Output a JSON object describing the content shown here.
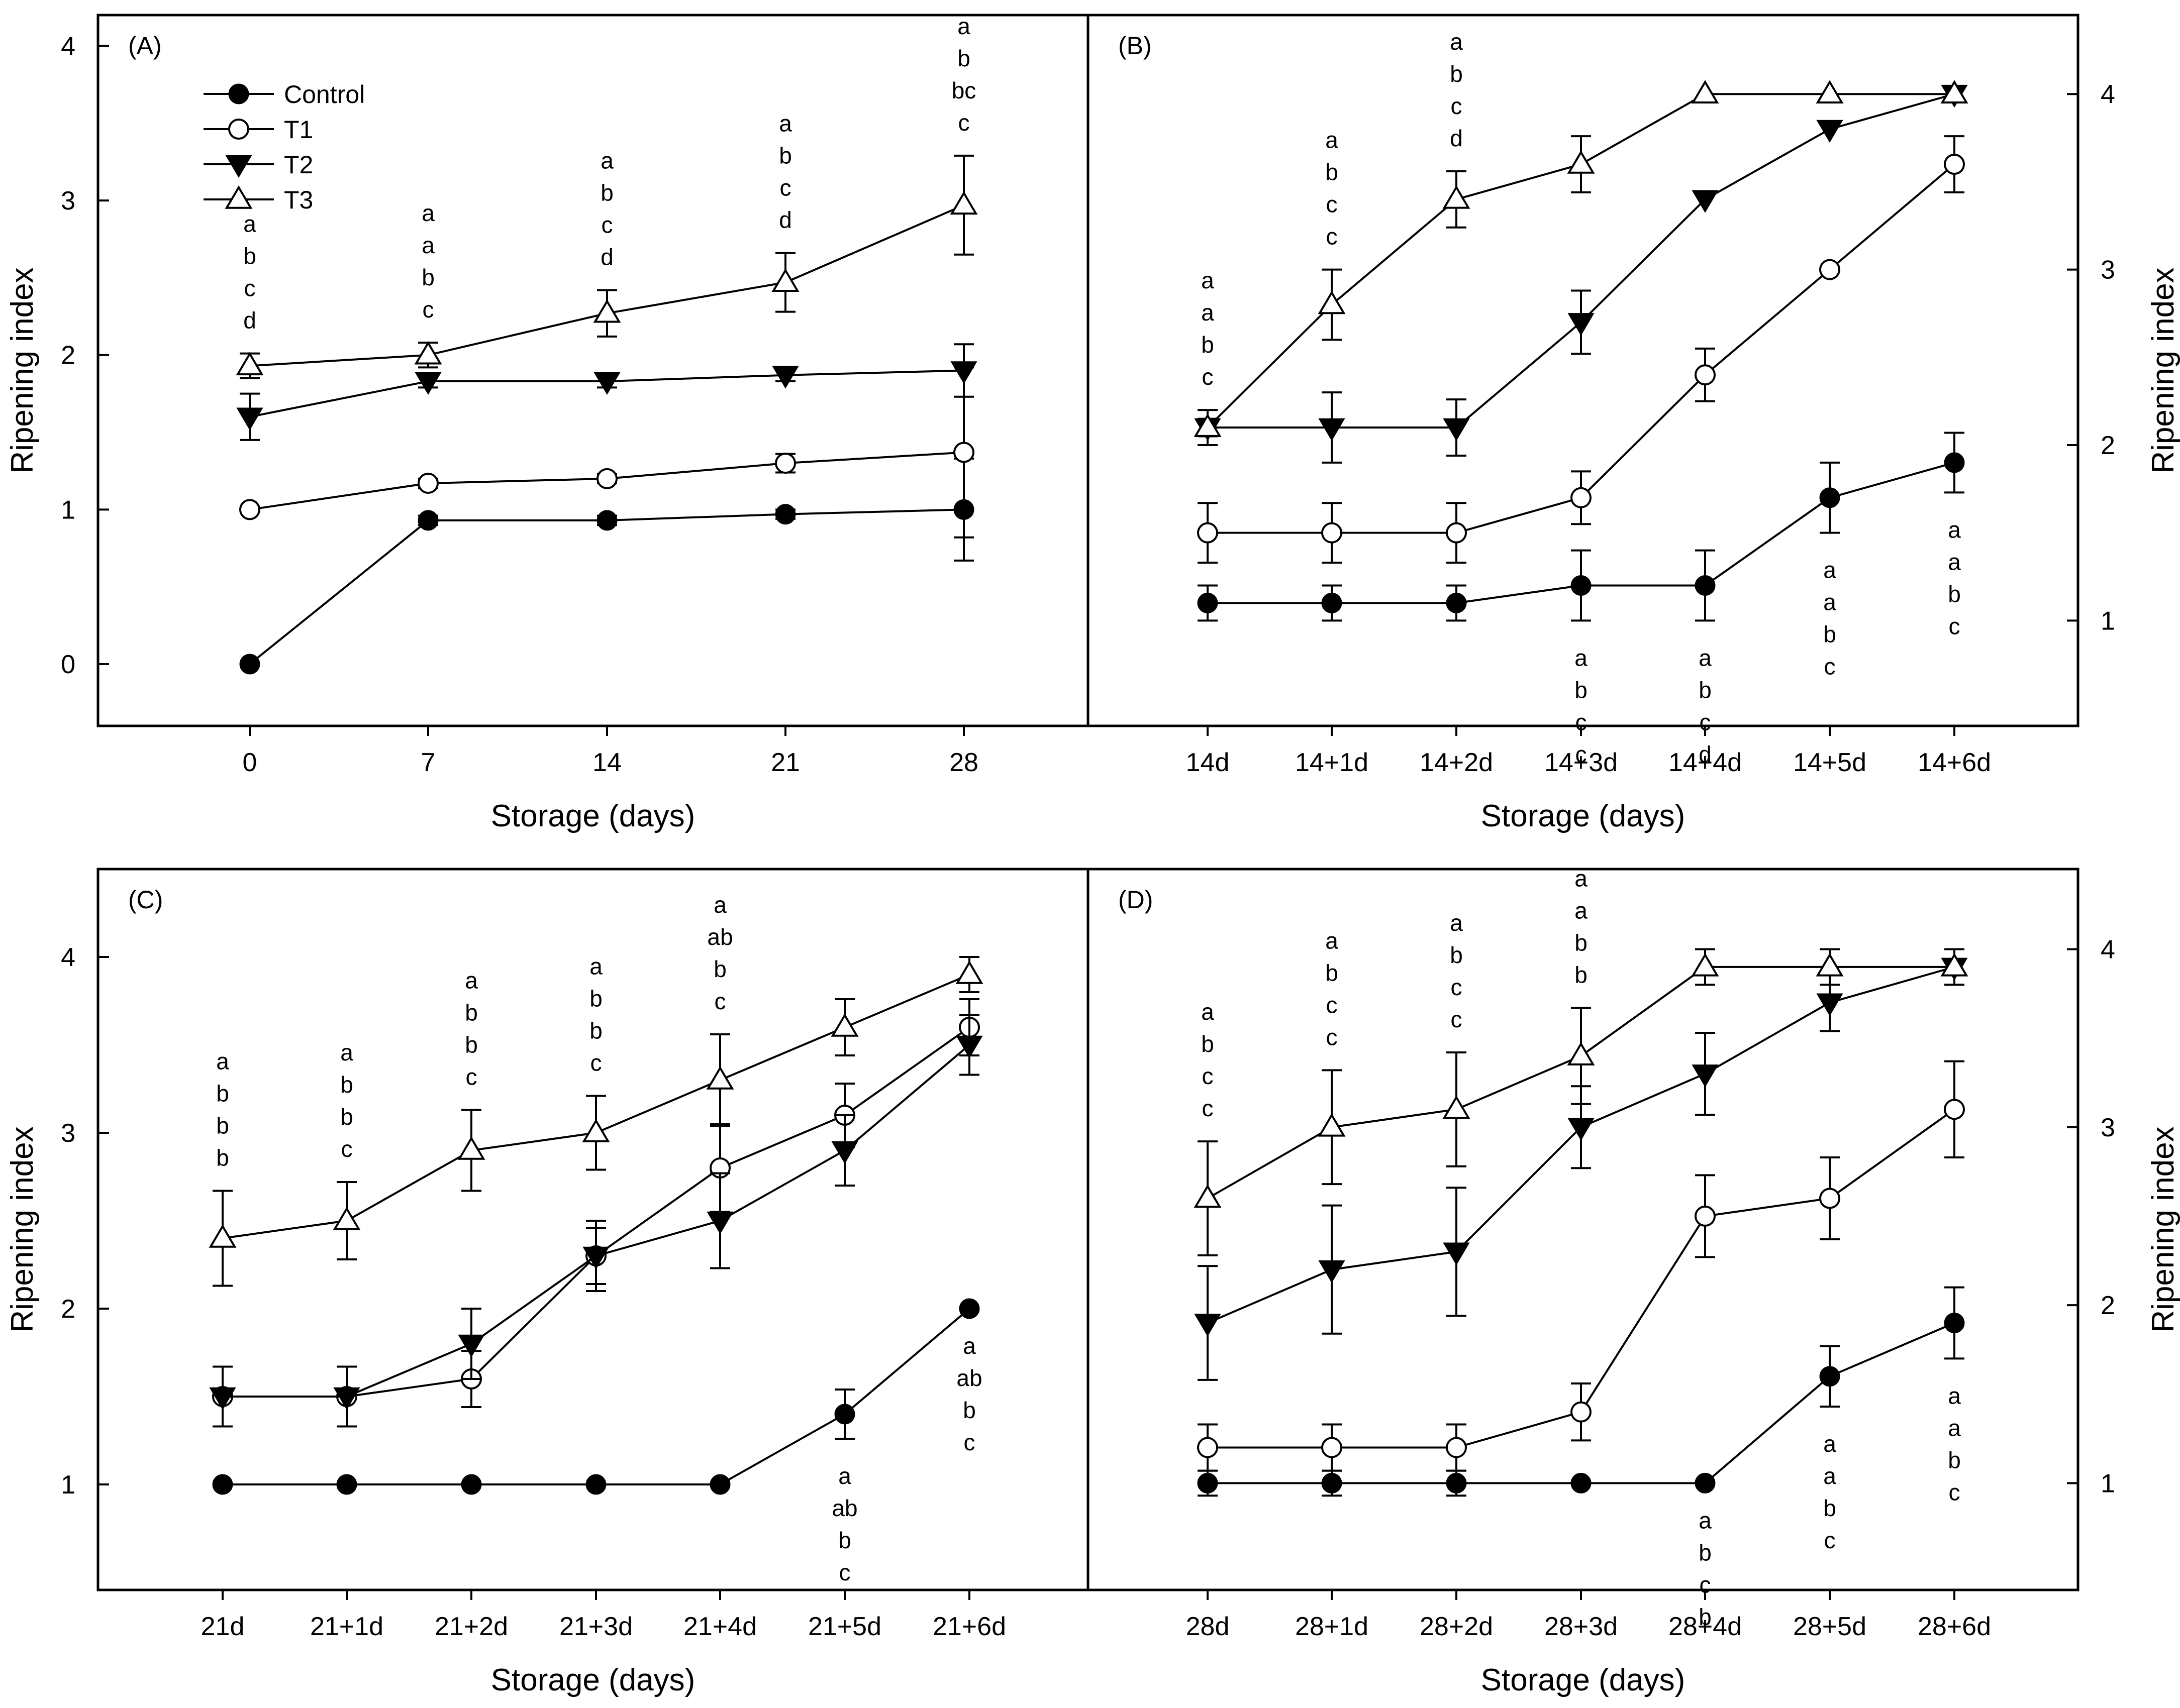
{
  "legend": [
    {
      "name": "Control",
      "marker": "filled-circle"
    },
    {
      "name": "T1",
      "marker": "open-circle"
    },
    {
      "name": "T2",
      "marker": "filled-triangle-down"
    },
    {
      "name": "T3",
      "marker": "open-triangle-up"
    }
  ],
  "colors": {
    "ink": "#000000",
    "background": "#ffffff"
  },
  "chart_data": [
    {
      "panel": "(A)",
      "type": "line",
      "xlabel": "Storage (days)",
      "ylabel": "Ripening index",
      "yaxis_side": "left",
      "ylim": [
        -0.4,
        4.2
      ],
      "yticks": [
        0,
        1,
        2,
        3,
        4
      ],
      "categories": [
        "0",
        "7",
        "14",
        "21",
        "28"
      ],
      "series": [
        {
          "name": "Control",
          "values": [
            0,
            0.93,
            0.93,
            0.97,
            1.0
          ],
          "errors": [
            0,
            0.03,
            0.03,
            0.03,
            0.33
          ]
        },
        {
          "name": "T1",
          "values": [
            1.0,
            1.17,
            1.2,
            1.3,
            1.37
          ],
          "errors": [
            0,
            0.03,
            0.03,
            0.06,
            0.55
          ]
        },
        {
          "name": "T2",
          "values": [
            1.6,
            1.83,
            1.83,
            1.87,
            1.9
          ],
          "errors": [
            0.15,
            0.04,
            0.04,
            0.04,
            0.17
          ]
        },
        {
          "name": "T3",
          "values": [
            1.93,
            2.0,
            2.27,
            2.47,
            2.97
          ],
          "errors": [
            0.08,
            0.08,
            0.15,
            0.19,
            0.32
          ]
        }
      ],
      "letters": [
        {
          "x": "0",
          "text": [
            "a",
            "b",
            "c",
            "d"
          ],
          "pos": "above"
        },
        {
          "x": "7",
          "text": [
            "a",
            "a",
            "b",
            "c"
          ],
          "pos": "above"
        },
        {
          "x": "14",
          "text": [
            "a",
            "b",
            "c",
            "d"
          ],
          "pos": "above"
        },
        {
          "x": "21",
          "text": [
            "a",
            "b",
            "c",
            "d"
          ],
          "pos": "above"
        },
        {
          "x": "28",
          "text": [
            "a",
            "b",
            "bc",
            "c"
          ],
          "pos": "above"
        }
      ]
    },
    {
      "panel": "(B)",
      "type": "line",
      "xlabel": "Storage (days)",
      "ylabel": "Ripening index",
      "yaxis_side": "right",
      "ylim": [
        0.4,
        4.45
      ],
      "yticks": [
        1,
        2,
        3,
        4
      ],
      "categories": [
        "14d",
        "14+1d",
        "14+2d",
        "14+3d",
        "14+4d",
        "14+5d",
        "14+6d"
      ],
      "series": [
        {
          "name": "Control",
          "values": [
            1.1,
            1.1,
            1.1,
            1.2,
            1.2,
            1.7,
            1.9
          ],
          "errors": [
            0.1,
            0.1,
            0.1,
            0.2,
            0.2,
            0.2,
            0.17
          ]
        },
        {
          "name": "T1",
          "values": [
            1.5,
            1.5,
            1.5,
            1.7,
            2.4,
            3.0,
            3.6
          ],
          "errors": [
            0.17,
            0.17,
            0.17,
            0.15,
            0.15,
            0.0,
            0.16
          ]
        },
        {
          "name": "T2",
          "values": [
            2.1,
            2.1,
            2.1,
            2.7,
            3.4,
            3.8,
            4.0
          ],
          "errors": [
            0.05,
            0.2,
            0.16,
            0.18,
            0.0,
            0.0,
            0.0
          ]
        },
        {
          "name": "T3",
          "values": [
            2.1,
            2.8,
            3.4,
            3.6,
            4.0,
            4.0,
            4.0
          ],
          "errors": [
            0.1,
            0.2,
            0.16,
            0.16,
            0.0,
            0.0,
            0.0
          ]
        }
      ],
      "letters": [
        {
          "x": "14d",
          "text": [
            "a",
            "a",
            "b",
            "c"
          ],
          "pos": "above"
        },
        {
          "x": "14+1d",
          "text": [
            "a",
            "b",
            "c",
            "c"
          ],
          "pos": "above"
        },
        {
          "x": "14+2d",
          "text": [
            "a",
            "b",
            "c",
            "d"
          ],
          "pos": "above"
        },
        {
          "x": "14+3d",
          "text": [
            "a",
            "b",
            "c",
            "c"
          ],
          "pos": "below"
        },
        {
          "x": "14+4d",
          "text": [
            "a",
            "b",
            "c",
            "d"
          ],
          "pos": "below"
        },
        {
          "x": "14+5d",
          "text": [
            "a",
            "a",
            "b",
            "c"
          ],
          "pos": "below"
        },
        {
          "x": "14+6d",
          "text": [
            "a",
            "a",
            "b",
            "c"
          ],
          "pos": "below"
        }
      ]
    },
    {
      "panel": "(C)",
      "type": "line",
      "xlabel": "Storage (days)",
      "ylabel": "Ripening index",
      "yaxis_side": "left",
      "ylim": [
        0.4,
        4.5
      ],
      "yticks": [
        1,
        2,
        3,
        4
      ],
      "categories": [
        "21d",
        "21+1d",
        "21+2d",
        "21+3d",
        "21+4d",
        "21+5d",
        "21+6d"
      ],
      "series": [
        {
          "name": "Control",
          "values": [
            1.0,
            1.0,
            1.0,
            1.0,
            1.0,
            1.4,
            2.0
          ],
          "errors": [
            0,
            0,
            0,
            0,
            0,
            0.14,
            0
          ]
        },
        {
          "name": "T1",
          "values": [
            1.5,
            1.5,
            1.6,
            2.3,
            2.8,
            3.1,
            3.6
          ],
          "errors": [
            0.17,
            0.17,
            0.16,
            0.2,
            0.25,
            0.18,
            0.16
          ]
        },
        {
          "name": "T2",
          "values": [
            1.5,
            1.5,
            1.8,
            2.3,
            2.5,
            2.9,
            3.5
          ],
          "errors": [
            0.17,
            0.17,
            0.2,
            0.16,
            0.27,
            0.2,
            0.17
          ]
        },
        {
          "name": "T3",
          "values": [
            2.4,
            2.5,
            2.9,
            3.0,
            3.3,
            3.6,
            3.9
          ],
          "errors": [
            0.27,
            0.22,
            0.23,
            0.21,
            0.26,
            0.16,
            0.1
          ]
        }
      ],
      "letters": [
        {
          "x": "21d",
          "text": [
            "a",
            "b",
            "b",
            "b"
          ],
          "pos": "above"
        },
        {
          "x": "21+1d",
          "text": [
            "a",
            "b",
            "b",
            "c"
          ],
          "pos": "above"
        },
        {
          "x": "21+2d",
          "text": [
            "a",
            "b",
            "b",
            "c"
          ],
          "pos": "above"
        },
        {
          "x": "21+3d",
          "text": [
            "a",
            "b",
            "b",
            "c"
          ],
          "pos": "above"
        },
        {
          "x": "21+4d",
          "text": [
            "a",
            "ab",
            "b",
            "c"
          ],
          "pos": "above"
        },
        {
          "x": "21+5d",
          "text": [
            "a",
            "ab",
            "b",
            "c"
          ],
          "pos": "below"
        },
        {
          "x": "21+6d",
          "text": [
            "a",
            "ab",
            "b",
            "c"
          ],
          "pos": "below"
        }
      ]
    },
    {
      "panel": "(D)",
      "type": "line",
      "xlabel": "Storage (days)",
      "ylabel": "Ripening index",
      "yaxis_side": "right",
      "ylim": [
        0.4,
        4.45
      ],
      "yticks": [
        1,
        2,
        3,
        4
      ],
      "categories": [
        "28d",
        "28+1d",
        "28+2d",
        "28+3d",
        "28+4d",
        "28+5d",
        "28+6d"
      ],
      "series": [
        {
          "name": "Control",
          "values": [
            1.0,
            1.0,
            1.0,
            1.0,
            1.0,
            1.6,
            1.9
          ],
          "errors": [
            0.07,
            0.07,
            0.07,
            0,
            0,
            0.17,
            0.2
          ]
        },
        {
          "name": "T1",
          "values": [
            1.2,
            1.2,
            1.2,
            1.4,
            2.5,
            2.6,
            3.1
          ],
          "errors": [
            0.13,
            0.13,
            0.13,
            0.16,
            0.23,
            0.23,
            0.27
          ]
        },
        {
          "name": "T2",
          "values": [
            1.9,
            2.2,
            2.3,
            3.0,
            3.3,
            3.7,
            3.9
          ],
          "errors": [
            0.32,
            0.36,
            0.36,
            0.23,
            0.23,
            0.16,
            0.1
          ]
        },
        {
          "name": "T3",
          "values": [
            2.6,
            3.0,
            3.1,
            3.4,
            3.9,
            3.9,
            3.9
          ],
          "errors": [
            0.32,
            0.32,
            0.32,
            0.27,
            0.1,
            0.1,
            0.1
          ]
        }
      ],
      "letters": [
        {
          "x": "28d",
          "text": [
            "a",
            "b",
            "c",
            "c"
          ],
          "pos": "above"
        },
        {
          "x": "28+1d",
          "text": [
            "a",
            "b",
            "c",
            "c"
          ],
          "pos": "above"
        },
        {
          "x": "28+2d",
          "text": [
            "a",
            "b",
            "c",
            "c"
          ],
          "pos": "above"
        },
        {
          "x": "28+3d",
          "text": [
            "a",
            "a",
            "b",
            "b"
          ],
          "pos": "above"
        },
        {
          "x": "28+4d",
          "text": [
            "a",
            "b",
            "c",
            "b"
          ],
          "pos": "below"
        },
        {
          "x": "28+5d",
          "text": [
            "a",
            "a",
            "b",
            "c"
          ],
          "pos": "below"
        },
        {
          "x": "28+6d",
          "text": [
            "a",
            "a",
            "b",
            "c"
          ],
          "pos": "below"
        }
      ]
    }
  ]
}
